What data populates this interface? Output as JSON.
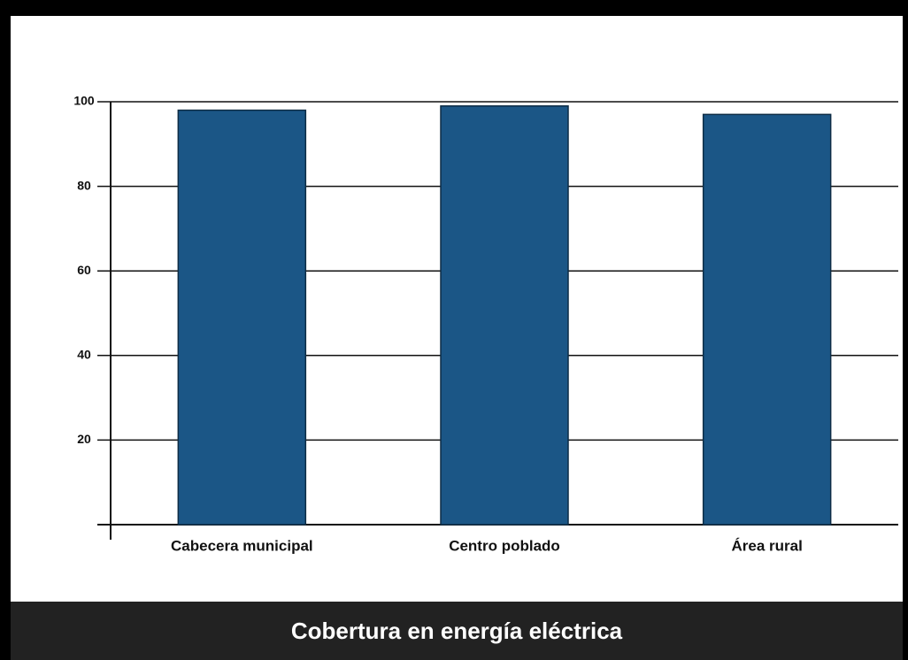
{
  "chart_data": {
    "type": "bar",
    "title": "Cobertura en energía eléctrica",
    "categories": [
      "Cabecera municipal",
      "Centro poblado",
      "Área rural"
    ],
    "values": [
      98,
      99,
      97
    ],
    "color": "#1b5686",
    "ylim": [
      0,
      100
    ],
    "yticks": [
      20,
      40,
      60,
      80,
      100
    ],
    "grid": true
  }
}
